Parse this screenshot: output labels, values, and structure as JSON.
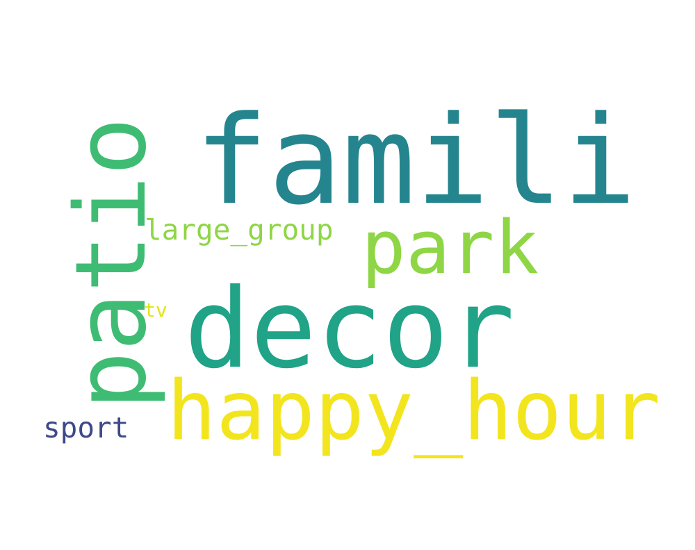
{
  "words": [
    {
      "text": "famili",
      "color": "#25858e"
    },
    {
      "text": "decor",
      "color": "#20a386"
    },
    {
      "text": "patio",
      "color": "#3fbc73"
    },
    {
      "text": "park",
      "color": "#8ed645"
    },
    {
      "text": "happy_hour",
      "color": "#f2e51d"
    },
    {
      "text": "large_group",
      "color": "#8ed645"
    },
    {
      "text": "sport",
      "color": "#3e4989"
    },
    {
      "text": "tv",
      "color": "#e2e418"
    }
  ]
}
